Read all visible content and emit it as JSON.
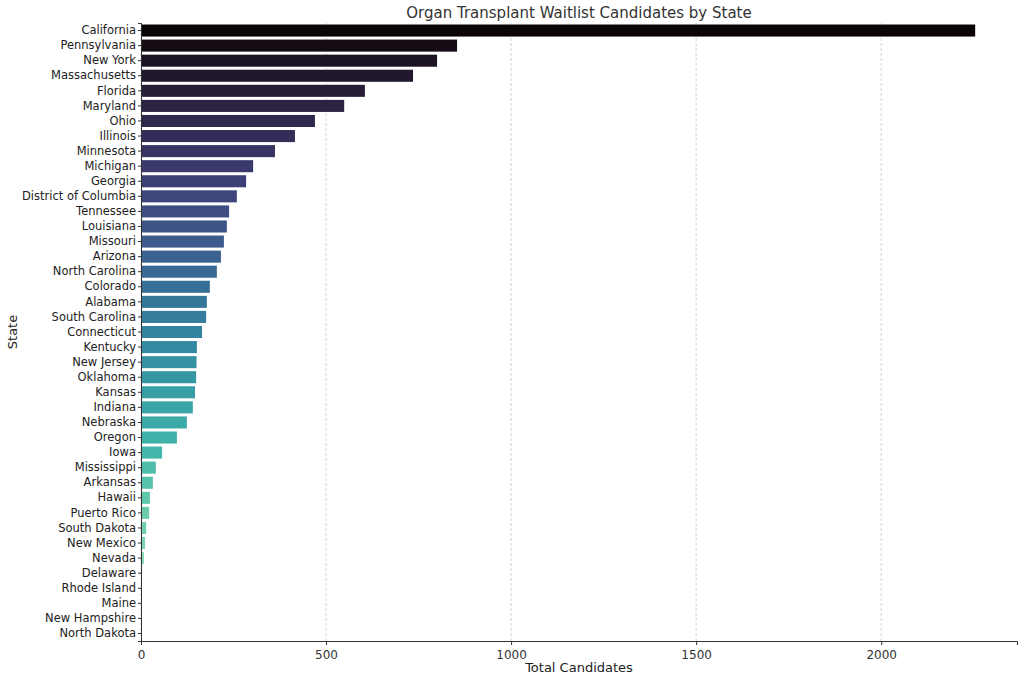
{
  "chart_data": {
    "type": "bar",
    "orientation": "horizontal",
    "title": "Organ Transplant Waitlist Candidates by State",
    "x_label": "Total Candidates",
    "y_label": "State",
    "categories": [
      "California",
      "Pennsylvania",
      "New York",
      "Massachusetts",
      "Florida",
      "Maryland",
      "Ohio",
      "Illinois",
      "Minnesota",
      "Michigan",
      "Georgia",
      "District of Columbia",
      "Tennessee",
      "Louisiana",
      "Missouri",
      "Arizona",
      "North Carolina",
      "Colorado",
      "Alabama",
      "South Carolina",
      "Connecticut",
      "Kentucky",
      "New Jersey",
      "Oklahoma",
      "Kansas",
      "Indiana",
      "Nebraska",
      "Oregon",
      "Iowa",
      "Mississippi",
      "Arkansas",
      "Hawaii",
      "Puerto Rico",
      "South Dakota",
      "New Mexico",
      "Nevada",
      "Delaware",
      "Rhode Island",
      "Maine",
      "New Hampshire",
      "North Dakota"
    ],
    "values": [
      2254,
      854,
      800,
      735,
      605,
      549,
      470,
      416,
      362,
      303,
      284,
      259,
      238,
      232,
      224,
      216,
      205,
      186,
      178,
      176,
      165,
      151,
      150,
      149,
      146,
      140,
      124,
      97,
      57,
      40,
      32,
      24,
      22,
      14,
      11,
      8,
      3,
      2,
      1,
      1,
      1
    ],
    "colors": [
      "#0b0405",
      "#140b14",
      "#1b1222",
      "#21182d",
      "#271d38",
      "#2c2342",
      "#30284c",
      "#342d57",
      "#373362",
      "#3a396c",
      "#3c3f75",
      "#3e467c",
      "#3e4d82",
      "#3e5487",
      "#3c5b8c",
      "#3a628f",
      "#386994",
      "#367096",
      "#357799",
      "#357d9c",
      "#34849e",
      "#348aa0",
      "#3491a2",
      "#3597a4",
      "#379ea5",
      "#39a4a7",
      "#3caba8",
      "#40b1a9",
      "#45b7aa",
      "#4dbdaa",
      "#56c2ab",
      "#60c7ac",
      "#6acbae",
      "#74cfb0",
      "#7ed3b2",
      "#88d7b5",
      "#92dbb8",
      "#9cdebb",
      "#a6e2bf",
      "#b0e6c3",
      "#baeac8"
    ],
    "xlim": [
      0,
      2367
    ],
    "xticks": [
      0,
      500,
      1000,
      1500,
      2000
    ],
    "grid": true
  }
}
